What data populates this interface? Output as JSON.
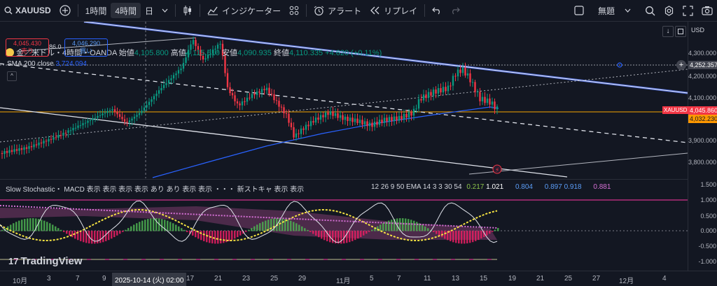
{
  "topbar": {
    "symbol": "XAUUSD",
    "interval_1h": "1時間",
    "interval_4h": "4時間",
    "interval_d": "日",
    "indicators_label": "インジケーター",
    "alert_label": "アラート",
    "replay_label": "リプレイ",
    "layout_name": "無題"
  },
  "legend": {
    "title": "金／米ドル・4時間・OANDA",
    "open_label": "始値",
    "open": "4,105.800",
    "high_label": "高値",
    "high": "4,115.610",
    "low_label": "安値",
    "low": "4,090.935",
    "close_label": "終値",
    "close": "4,110.335",
    "change": "+4.620 (+0.11%)",
    "sell_price": "4,045.430",
    "sell_label": "売り",
    "spread": "86.0",
    "buy_price": "4,046.290",
    "buy_label": "買い",
    "sma_label": "SMA 200 close",
    "sma_value": "3,724.094"
  },
  "price_axis": {
    "currency": "USD",
    "ticks": [
      "4,300.000",
      "4,200.000",
      "4,100.000",
      "3,900.000",
      "3,800.000"
    ],
    "hline_price": "4,252.357",
    "symbol_tag": "XAUUSD",
    "last_price": "4,045.860",
    "sma_tag": "4,032.230",
    "osc_ticks": [
      "1.500",
      "1.000",
      "0.500",
      "0.000",
      "-0.500",
      "-1.000"
    ]
  },
  "oscillator": {
    "legend_text": "Slow Stochastic・ MACD 表示 表示 表示 表示 あり あり 表示 表示 ・・・ 新ストキャ 表示 表示",
    "params": "12 26 9 50 EMA 14 3 3 30 54",
    "v1": "0.217",
    "v2": "1.021",
    "v3": "0.804",
    "v4": "0.897",
    "v5": "0.918",
    "v6": "0.881"
  },
  "time_axis": {
    "labels": [
      "10月",
      "3",
      "7",
      "9",
      "2025-10-14 (火)  02:00",
      "17",
      "21",
      "23",
      "25",
      "29",
      "11月",
      "5",
      "7",
      "11",
      "13",
      "15",
      "19",
      "21",
      "25",
      "27",
      "12月",
      "4"
    ]
  },
  "watermark": "TradingView",
  "colors": {
    "background": "#131722",
    "up_candle": "#089981",
    "down_candle": "#f23645",
    "sma_line": "#2962ff",
    "last_price_tag": "#f23645",
    "hline_tag": "#434651",
    "sma_tag": "#ff9800"
  }
}
